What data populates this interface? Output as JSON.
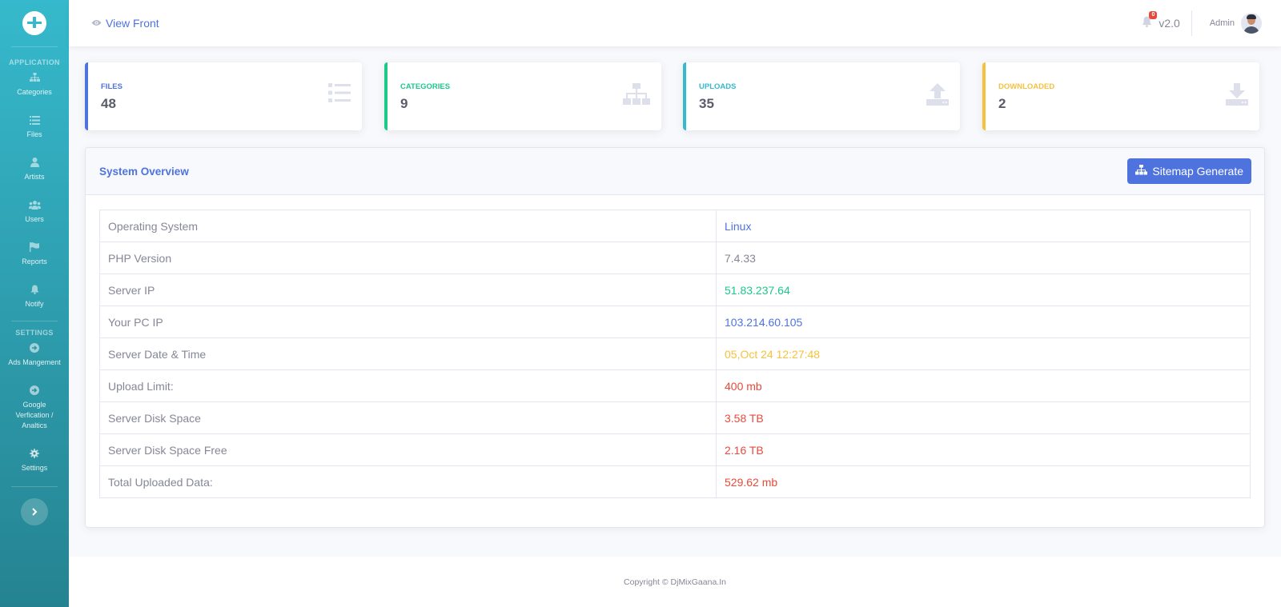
{
  "sidebar": {
    "logo_icon": "dashboard-gauge-icon",
    "sections": [
      {
        "title": "APPLICATION",
        "items": [
          {
            "label": "Categories",
            "icon": "sitemap-icon"
          },
          {
            "label": "Files",
            "icon": "list-icon"
          },
          {
            "label": "Artists",
            "icon": "user-icon"
          },
          {
            "label": "Users",
            "icon": "users-icon"
          },
          {
            "label": "Reports",
            "icon": "flag-icon"
          },
          {
            "label": "Notify",
            "icon": "bell-icon"
          }
        ]
      },
      {
        "title": "SETTINGS",
        "items": [
          {
            "label": "Ads Mangement",
            "icon": "arrow-circle-right-icon"
          },
          {
            "label": "Google Verfication / Analtics",
            "icon": "arrow-circle-right-icon"
          },
          {
            "label": "Settings",
            "icon": "gear-icon"
          }
        ]
      }
    ],
    "toggle_icon": "chevron-right-icon"
  },
  "topbar": {
    "view_front_label": "View Front",
    "notification_count": "0",
    "version": "v2.0",
    "user_name": "Admin"
  },
  "stats": [
    {
      "label": "FILES",
      "value": "48",
      "color": "#4e73df",
      "icon": "list-icon"
    },
    {
      "label": "CATEGORIES",
      "value": "9",
      "color": "#1cc88a",
      "icon": "sitemap-icon"
    },
    {
      "label": "UPLOADS",
      "value": "35",
      "color": "#36b9cc",
      "icon": "upload-icon"
    },
    {
      "label": "DOWNLOADED",
      "value": "2",
      "color": "#f6c23e",
      "icon": "download-icon"
    }
  ],
  "overview": {
    "title": "System Overview",
    "button_label": "Sitemap Generate",
    "rows": [
      {
        "key": "Operating System",
        "value": "Linux",
        "color": "#4e73df"
      },
      {
        "key": "PHP Version",
        "value": "7.4.33",
        "color": "#858796"
      },
      {
        "key": "Server IP",
        "value": "51.83.237.64",
        "color": "#1cc88a"
      },
      {
        "key": "Your PC IP",
        "value": "103.214.60.105",
        "color": "#4e73df"
      },
      {
        "key": "Server Date & Time",
        "value": "05,Oct 24 12:27:48",
        "color": "#f6c23e"
      },
      {
        "key": "Upload Limit:",
        "value": "400 mb",
        "color": "#e74a3b"
      },
      {
        "key": "Server Disk Space",
        "value": "3.58 TB",
        "color": "#e74a3b"
      },
      {
        "key": "Server Disk Space Free",
        "value": "2.16 TB",
        "color": "#e74a3b"
      },
      {
        "key": "Total Uploaded Data:",
        "value": "529.62 mb",
        "color": "#e74a3b"
      }
    ]
  },
  "footer": {
    "text": "Copyright © DjMixGaana.In"
  }
}
